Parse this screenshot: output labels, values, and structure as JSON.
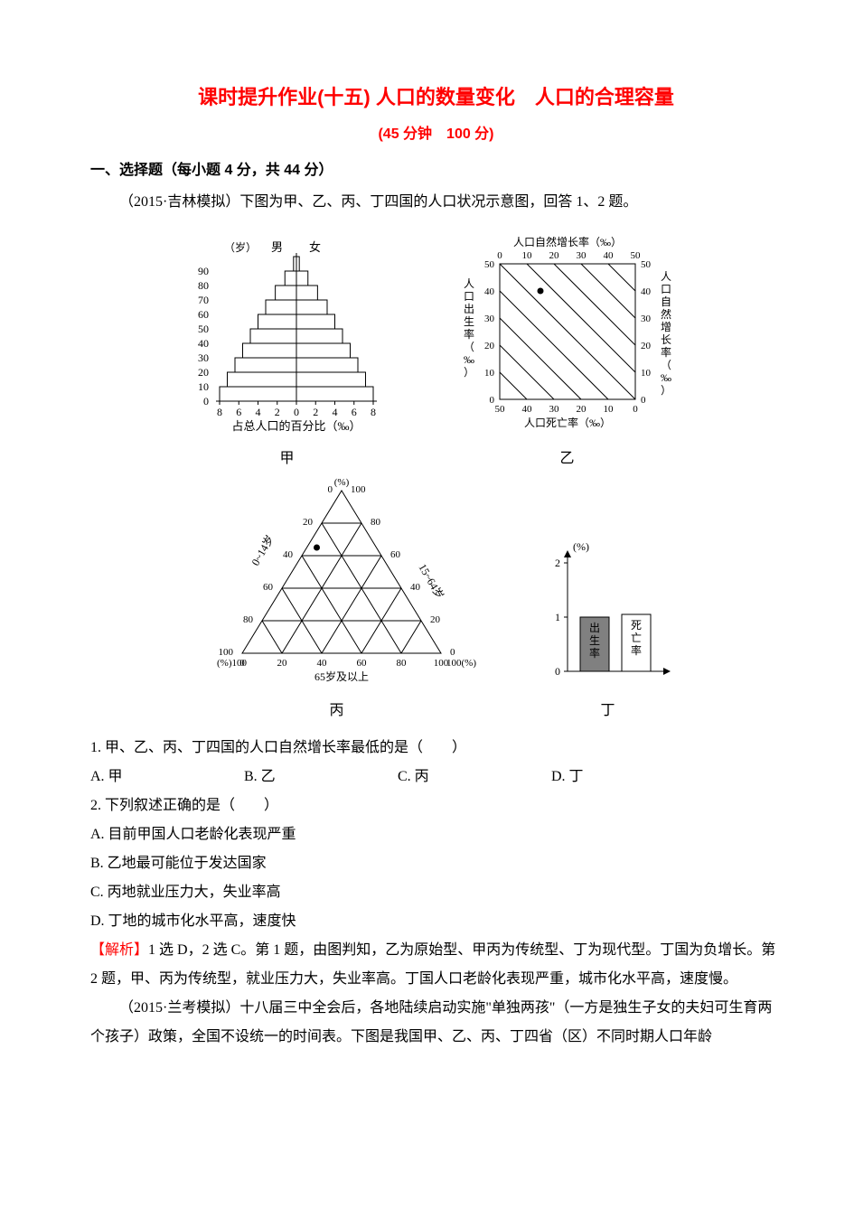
{
  "title": "课时提升作业(十五) 人口的数量变化　人口的合理容量",
  "subtitle": "(45 分钟　100 分)",
  "section1_header": "一、选择题（每小题 4 分，共 44 分）",
  "intro_1_2": "（2015·吉林模拟）下图为甲、乙、丙、丁四国的人口状况示意图，回答 1、2 题。",
  "fig_jia": {
    "label": "甲",
    "axis_left_top": "（岁）",
    "gender_m": "男",
    "gender_f": "女",
    "x_axis_label": "占总人口的百分比（‰）",
    "y_ticks": [
      0,
      10,
      20,
      30,
      40,
      50,
      60,
      70,
      80,
      90
    ],
    "x_ticks": [
      8,
      6,
      4,
      2,
      0,
      2,
      4,
      6,
      8
    ],
    "bar_half_widths": [
      8,
      7.2,
      6.4,
      5.6,
      4.8,
      4.0,
      3.2,
      2.2,
      1.2,
      0.3
    ],
    "bar_color": "#ffffff",
    "bar_border": "#000000",
    "axis_color": "#000000"
  },
  "fig_yi": {
    "label": "乙",
    "top_label": "人口自然增长率（‰）",
    "top_ticks": [
      0,
      10,
      20,
      30,
      40,
      50
    ],
    "left_label": "人口出生率（‰）",
    "left_ticks": [
      0,
      10,
      20,
      30,
      40,
      50
    ],
    "bottom_label": "人口死亡率（‰）",
    "bottom_ticks": [
      50,
      40,
      30,
      20,
      10,
      0
    ],
    "right_label": "人口自然增长率（‰）",
    "right_ticks": [
      0,
      10,
      20,
      30,
      40,
      50
    ],
    "point": {
      "birth": 40,
      "death": 35,
      "growth": 5
    },
    "grid_color": "#000000",
    "point_color": "#000000"
  },
  "fig_bing": {
    "label": "丙",
    "axis_0_14": "0~14岁",
    "axis_15_64": "15~64岁",
    "axis_65": "65岁及以上",
    "unit": "(%)",
    "ticks": [
      0,
      20,
      40,
      60,
      80,
      100
    ],
    "point": {
      "age_0_14": 30,
      "age_15_64": 65,
      "age_65_plus": 5
    },
    "grid_color": "#000000",
    "point_color": "#000000"
  },
  "fig_ding": {
    "label": "丁",
    "y_unit": "(%)",
    "y_ticks": [
      0,
      1,
      2
    ],
    "bars": [
      {
        "label": "出生率",
        "value": 1.0,
        "fill": "#808080"
      },
      {
        "label": "死亡率",
        "value": 1.05,
        "fill": "#ffffff"
      }
    ],
    "axis_color": "#000000"
  },
  "q1": {
    "text": "1. 甲、乙、丙、丁四国的人口自然增长率最低的是（　　）",
    "A": "A. 甲",
    "B": "B. 乙",
    "C": "C. 丙",
    "D": "D. 丁"
  },
  "q2": {
    "text": "2. 下列叙述正确的是（　　）",
    "A": "A. 目前甲国人口老龄化表现严重",
    "B": "B. 乙地最可能位于发达国家",
    "C": "C. 丙地就业压力大，失业率高",
    "D": "D. 丁地的城市化水平高，速度快"
  },
  "analysis_label": "【解析】",
  "analysis_text": "1 选 D，2 选 C。第 1 题，由图判知，乙为原始型、甲丙为传统型、丁为现代型。丁国为负增长。第 2 题，甲、丙为传统型，就业压力大，失业率高。丁国人口老龄化表现严重，城市化水平高，速度慢。",
  "intro_3": "（2015·兰考模拟）十八届三中全会后，各地陆续启动实施\"单独两孩\"（一方是独生子女的夫妇可生育两个孩子）政策，全国不设统一的时间表。下图是我国甲、乙、丙、丁四省（区）不同时期人口年龄"
}
